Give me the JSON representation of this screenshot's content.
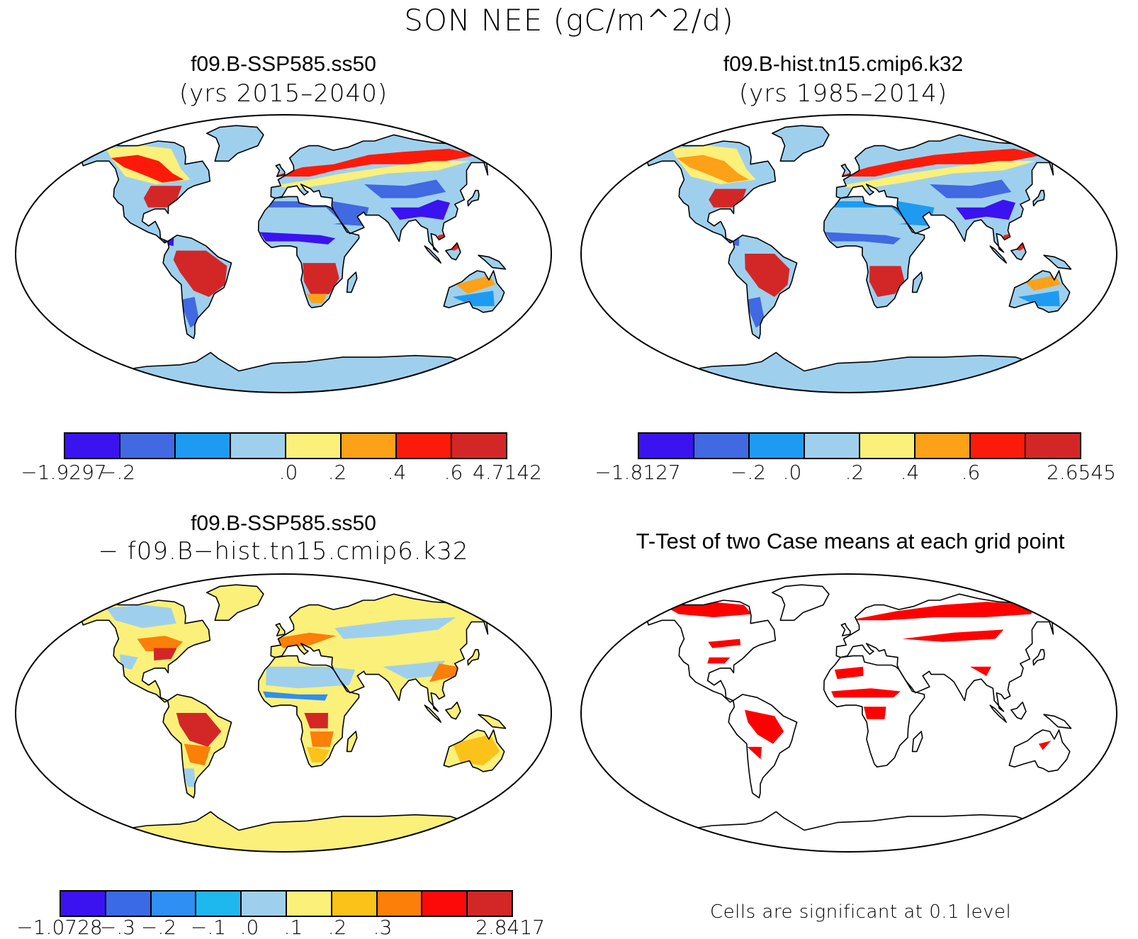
{
  "title": "SON NEE (gC/m^2/d)",
  "colors": {
    "c1": "#3a13f0",
    "c2": "#4169e1",
    "c3": "#1e9bf0",
    "c4": "#9ed0ee",
    "c5": "#fbf079",
    "c6": "#fca118",
    "c7": "#fc1b0a",
    "c8": "#d32727",
    "ocean": "#ffffff",
    "sig": "#ff0000",
    "diff": [
      "#3a13f0",
      "#3b6ae6",
      "#2f8ff2",
      "#1fb8ee",
      "#9ed0ee",
      "#fbf079",
      "#fbc21a",
      "#fb7f08",
      "#fc0a0a",
      "#d32727"
    ]
  },
  "panels": {
    "a": {
      "case": "f09.B-SSP585.ss50",
      "years": "(yrs 2015–2040)",
      "colorbar_labels": [
        "−1.9297",
        "−.2",
        ".0",
        ".2",
        ".4",
        ".6",
        "4.7142"
      ]
    },
    "b": {
      "case": "f09.B-hist.tn15.cmip6.k32",
      "years": "(yrs 1985–2014)",
      "colorbar_labels": [
        "−1.8127",
        "−.2",
        ".0",
        ".2",
        ".4",
        ".6",
        "2.6545"
      ]
    },
    "c": {
      "case": "f09.B-SSP585.ss50",
      "subtitle": "− f09.B−hist.tn15.cmip6.k32",
      "colorbar_labels": [
        "−1.0728",
        "−.3",
        "−.2",
        "−.1",
        ".0",
        ".1",
        ".2",
        ".3",
        "2.8417"
      ]
    },
    "d": {
      "title": "T-Test of two Case means at each grid point",
      "note": "Cells are significant at 0.1 level"
    }
  }
}
